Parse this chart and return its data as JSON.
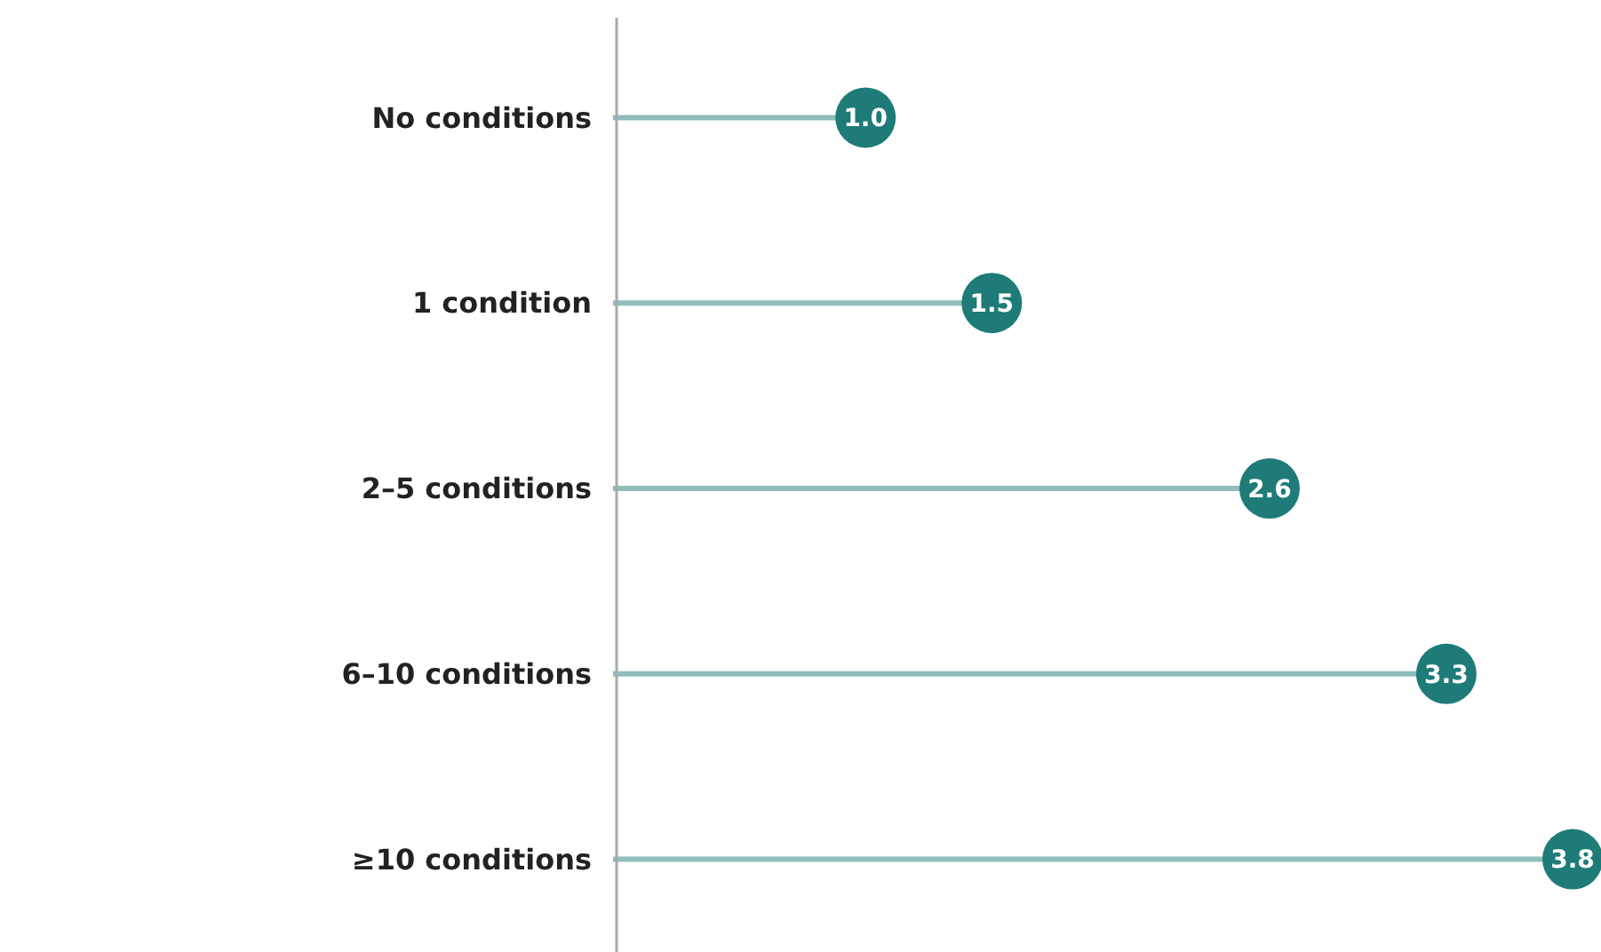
{
  "chart_data": {
    "type": "lollipop",
    "orientation": "horizontal",
    "categories": [
      "No conditions",
      "1 condition",
      "2–5 conditions",
      "6–10 conditions",
      "≥10 conditions"
    ],
    "values": [
      1.0,
      1.5,
      2.6,
      3.3,
      3.8
    ],
    "value_labels": [
      "1.0",
      "1.5",
      "2.6",
      "3.3",
      "3.8"
    ],
    "color": "#1e7b78",
    "xlim": [
      0,
      3.8
    ]
  }
}
